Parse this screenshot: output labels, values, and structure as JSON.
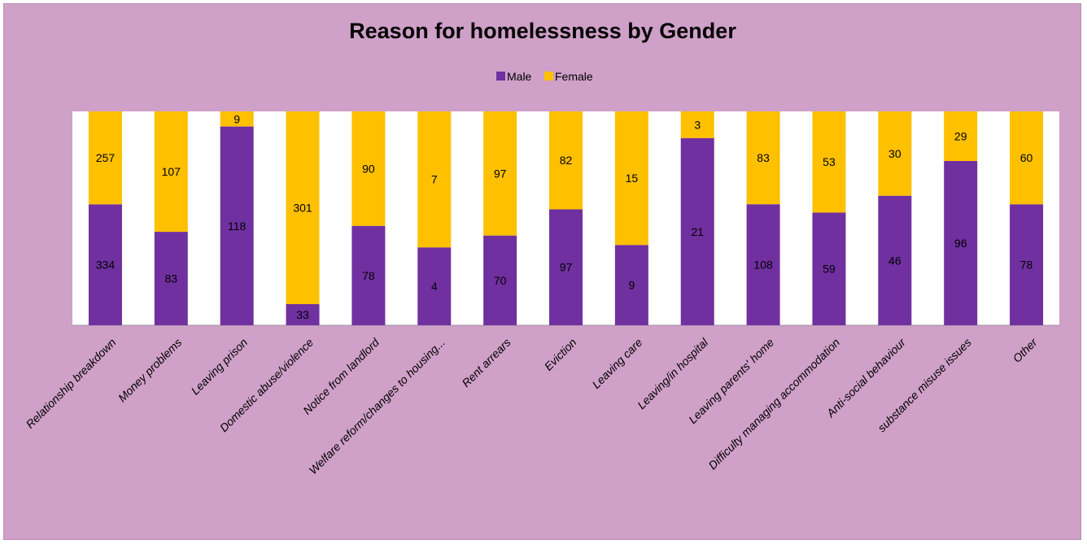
{
  "chart_data": {
    "type": "bar",
    "stacked": true,
    "normalized": true,
    "title": "Reason for homelessness by Gender",
    "xlabel": "",
    "ylabel": "",
    "legend_position": "top",
    "grid": false,
    "categories": [
      "Relationship breakdown",
      "Money problems",
      "Leaving prison",
      "Domestic abuse/violence",
      "Notice from landlord",
      "Welfare reform/changes to housing...",
      "Rent arrears",
      "Eviction",
      "Leaving care",
      "Leaving/in hospital",
      "Leaving parents' home",
      "Difficulty managing accommodation",
      "Anti-social behaviour",
      "substance misuse issues",
      "Other"
    ],
    "series": [
      {
        "name": "Male",
        "color": "#7030a0",
        "values": [
          334,
          83,
          118,
          33,
          78,
          4,
          70,
          97,
          9,
          21,
          108,
          59,
          46,
          96,
          78
        ]
      },
      {
        "name": "Female",
        "color": "#ffc000",
        "values": [
          257,
          107,
          9,
          301,
          90,
          7,
          97,
          82,
          15,
          3,
          83,
          53,
          30,
          29,
          60
        ]
      }
    ]
  },
  "colors": {
    "background": "#cfa0c8",
    "plot_area": "#ffffff",
    "male": "#7030a0",
    "female": "#ffc000"
  }
}
